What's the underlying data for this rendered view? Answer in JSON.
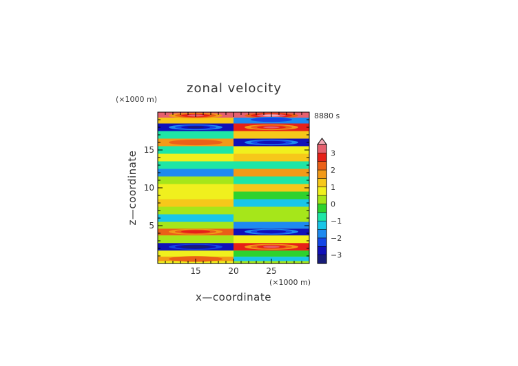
{
  "chart_data": {
    "type": "heatmap",
    "title": "zonal velocity",
    "xlabel": "x—coordinate",
    "ylabel": "z—coordinate",
    "x_unit": "(×1000 m)",
    "y_unit": "(×1000 m)",
    "time_label": "8880 s",
    "xlim": [
      10,
      30
    ],
    "ylim": [
      0,
      20
    ],
    "x_ticks": [
      "15",
      "20",
      "25"
    ],
    "y_ticks": [
      "5",
      "10",
      "15"
    ],
    "colorbar_ticks": [
      "3",
      "2",
      "1",
      "0",
      "−1",
      "−2",
      "−3"
    ],
    "colorbar_values": [
      3,
      2,
      1,
      0,
      -1,
      -2,
      -3
    ],
    "colorbar_range": [
      -3.5,
      3.5
    ],
    "colorbar_extend": "max",
    "palette": [
      "#181c78",
      "#1010b8",
      "#1446e6",
      "#1e8af0",
      "#18c6e8",
      "#1ee6a6",
      "#2ed22e",
      "#a6e61a",
      "#f0f01e",
      "#f6c81a",
      "#f29a18",
      "#ea6018",
      "#e62018",
      "#e6606e",
      "#f2aab6",
      "#f8e8ee"
    ],
    "bands": [
      {
        "z": 19.55,
        "left": 3.2,
        "right": 3.3
      },
      {
        "z": 19.0,
        "left": 1.3,
        "right": -2.0
      },
      {
        "z": 18.0,
        "left": -3.0,
        "right": 2.9
      },
      {
        "z": 17.0,
        "left": -0.6,
        "right": 1.0
      },
      {
        "z": 16.0,
        "left": 1.8,
        "right": -2.6
      },
      {
        "z": 15.0,
        "left": -1.0,
        "right": 0.6
      },
      {
        "z": 14.0,
        "left": 0.9,
        "right": 1.4
      },
      {
        "z": 13.0,
        "left": -1.0,
        "right": -0.6
      },
      {
        "z": 12.0,
        "left": -1.6,
        "right": 1.6
      },
      {
        "z": 11.0,
        "left": 0.3,
        "right": -0.7
      },
      {
        "z": 10.0,
        "left": 0.6,
        "right": 1.2
      },
      {
        "z": 9.0,
        "left": 0.6,
        "right": -0.4
      },
      {
        "z": 8.0,
        "left": 1.3,
        "right": -1.1
      },
      {
        "z": 7.0,
        "left": 0.3,
        "right": 0.2
      },
      {
        "z": 6.0,
        "left": -1.2,
        "right": 0.4
      },
      {
        "z": 5.0,
        "left": 0.2,
        "right": -1.6
      },
      {
        "z": 4.2,
        "left": 2.4,
        "right": -2.6
      },
      {
        "z": 3.2,
        "left": 0.3,
        "right": 0.6
      },
      {
        "z": 2.2,
        "left": -2.8,
        "right": 2.9
      },
      {
        "z": 1.2,
        "left": 0.6,
        "right": -0.4
      },
      {
        "z": 0.6,
        "left": 1.8,
        "right": -1.2
      },
      {
        "z": 0.0,
        "left": 0.7,
        "right": 0.3
      }
    ]
  }
}
